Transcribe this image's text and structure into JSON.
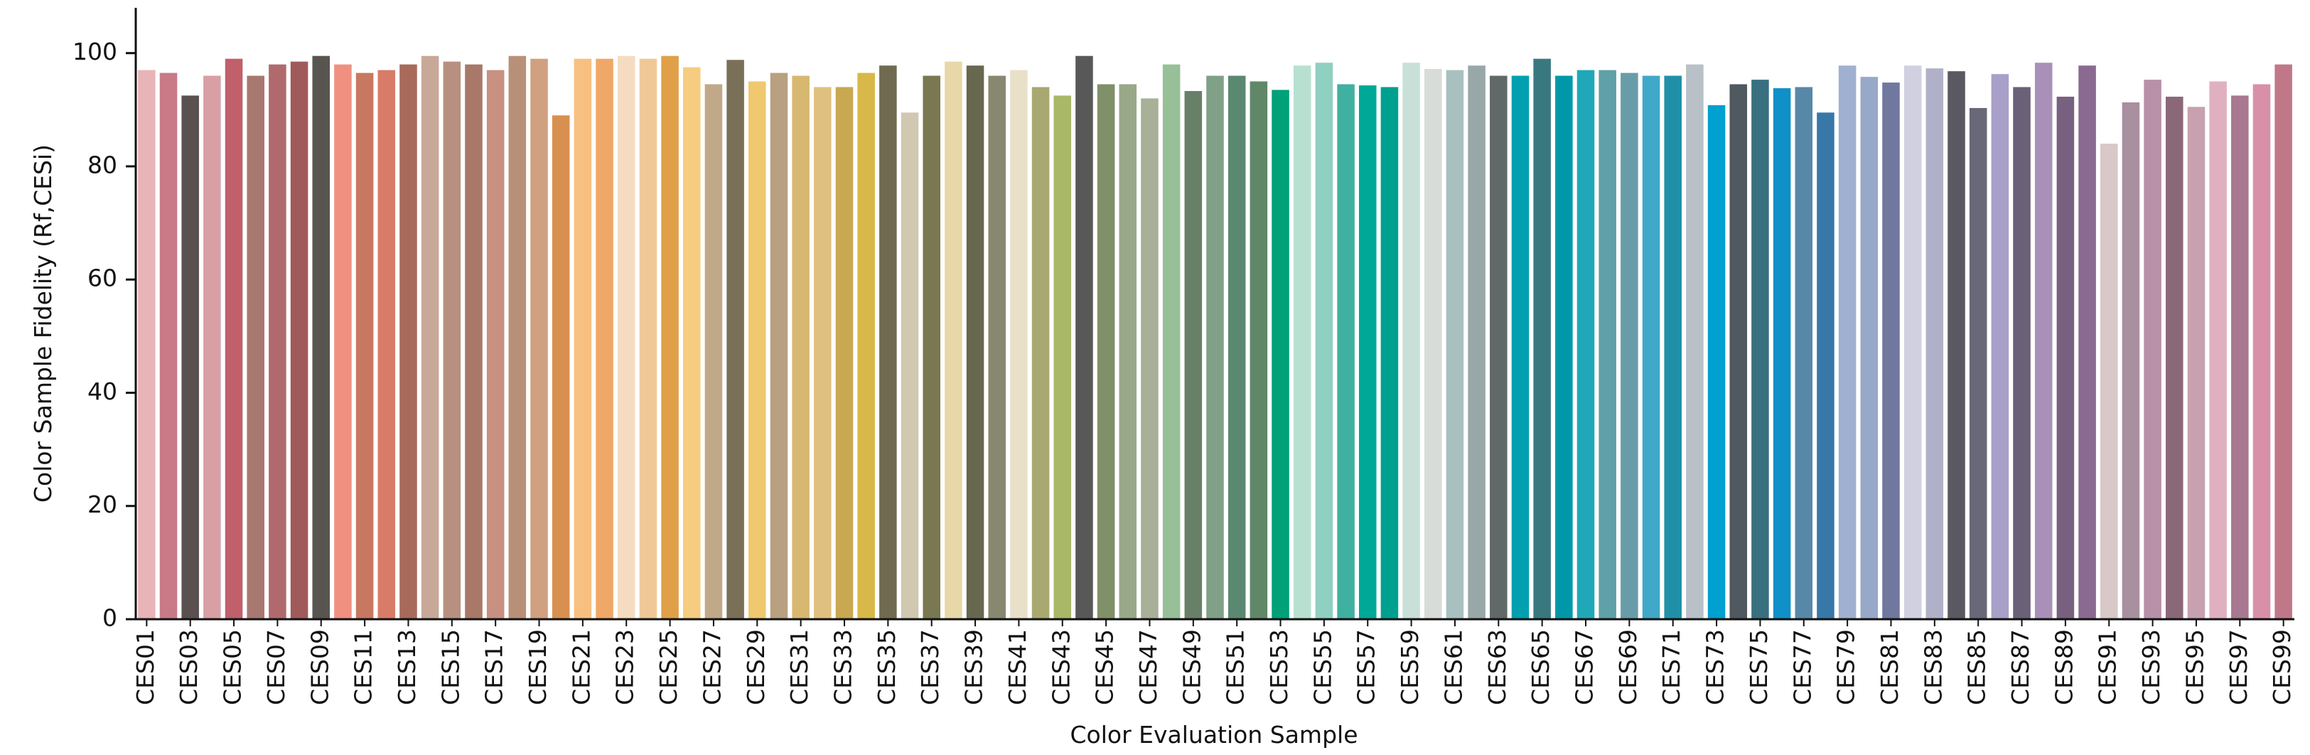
{
  "chart_data": {
    "type": "bar",
    "x_label": "Color Evaluation Sample",
    "y_label": "Color Sample Fidelity (Rf,CESi)",
    "categories": [
      "CES01",
      null,
      "CES03",
      null,
      "CES05",
      null,
      "CES07",
      null,
      "CES09",
      null,
      "CES11",
      null,
      "CES13",
      null,
      "CES15",
      null,
      "CES17",
      null,
      "CES19",
      null,
      "CES21",
      null,
      "CES23",
      null,
      "CES25",
      null,
      "CES27",
      null,
      "CES29",
      null,
      "CES31",
      null,
      "CES33",
      null,
      "CES35",
      null,
      "CES37",
      null,
      "CES39",
      null,
      "CES41",
      null,
      "CES43",
      null,
      "CES45",
      null,
      "CES47",
      null,
      "CES49",
      null,
      "CES51",
      null,
      "CES53",
      null,
      "CES55",
      null,
      "CES57",
      null,
      "CES59",
      null,
      "CES61",
      null,
      "CES63",
      null,
      "CES65",
      null,
      "CES67",
      null,
      "CES69",
      null,
      "CES71",
      null,
      "CES73",
      null,
      "CES75",
      null,
      "CES77",
      null,
      "CES79",
      null,
      "CES81",
      null,
      "CES83",
      null,
      "CES85",
      null,
      "CES87",
      null,
      "CES89",
      null,
      "CES91",
      null,
      "CES93",
      null,
      "CES95",
      null,
      "CES97",
      null,
      "CES99"
    ],
    "values": [
      97,
      96.5,
      92.5,
      96,
      99,
      96,
      98,
      98.5,
      99.5,
      98,
      96.5,
      97,
      98,
      99.5,
      98.5,
      98,
      97,
      99.5,
      99,
      89,
      99,
      99,
      99.5,
      99,
      99.5,
      97.5,
      94.5,
      98.8,
      95,
      96.5,
      96,
      94,
      94,
      96.5,
      97.8,
      89.5,
      96,
      98.5,
      97.8,
      96,
      97,
      94,
      92.5,
      99.5,
      94.5,
      94.5,
      92,
      98,
      93.3,
      96,
      96,
      95,
      93.5,
      97.8,
      98.3,
      94.5,
      94.3,
      94,
      98.3,
      97.2,
      97,
      97.8,
      96,
      96,
      99,
      96,
      97,
      97,
      96.5,
      96,
      96,
      98,
      90.8,
      94.5,
      95.3,
      93.8,
      94,
      89.5,
      97.8,
      95.8,
      94.8,
      97.8,
      97.3,
      96.8,
      90.3,
      96.3,
      94,
      98.3,
      92.3,
      97.8,
      84,
      91.3,
      95.3,
      92.3,
      90.5,
      95,
      92.5,
      94.5,
      98
    ],
    "colors": [
      "#e8b4b8",
      "#c87a86",
      "#5a5050",
      "#d8a0a4",
      "#c0606a",
      "#a87870",
      "#b06a6e",
      "#a05a5a",
      "#585450",
      "#f09080",
      "#c87860",
      "#d87c68",
      "#a86a5a",
      "#c8a898",
      "#b89080",
      "#a87868",
      "#c89080",
      "#b89078",
      "#d0a080",
      "#d89050",
      "#f8c080",
      "#f0a868",
      "#f5dcc0",
      "#f0c898",
      "#e0a048",
      "#f5cc80",
      "#c0a888",
      "#7a7058",
      "#f0c870",
      "#b8a080",
      "#d8b870",
      "#e0c080",
      "#c8a850",
      "#d8b848",
      "#706a50",
      "#d0c8b0",
      "#7a7850",
      "#e8d8a8",
      "#686850",
      "#888870",
      "#e8e0c8",
      "#a8a870",
      "#a8b868",
      "#585858",
      "#809068",
      "#98a888",
      "#a8b098",
      "#98c098",
      "#688068",
      "#80a088",
      "#5a8870",
      "#608868",
      "#00a078",
      "#b8e0d0",
      "#90d0c0",
      "#40b0a0",
      "#00a898",
      "#00a090",
      "#c8e0d8",
      "#d8dcd8",
      "#a8c0c0",
      "#98a8a8",
      "#606868",
      "#00a0b0",
      "#3a7880",
      "#0098a8",
      "#20a8b8",
      "#60a0a8",
      "#689ca8",
      "#40a8c8",
      "#2090a8",
      "#b8c0c8",
      "#00a0d0",
      "#505860",
      "#387080",
      "#1090c8",
      "#5888a8",
      "#3878a8",
      "#a0b0d0",
      "#98a8c8",
      "#7078a0",
      "#d0d0e0",
      "#b0b0c8",
      "#5a5860",
      "#686878",
      "#a8a0c8",
      "#6a6078",
      "#a890b8",
      "#786080",
      "#8a6a90",
      "#d8c8c8",
      "#a890a0",
      "#b890a8",
      "#8a6878",
      "#c8a0b0",
      "#e0b0c0",
      "#a87890",
      "#d890a8",
      "#c07888"
    ],
    "ylim": [
      0,
      108
    ],
    "yticks": [
      0,
      20,
      40,
      60,
      80,
      100
    ]
  }
}
